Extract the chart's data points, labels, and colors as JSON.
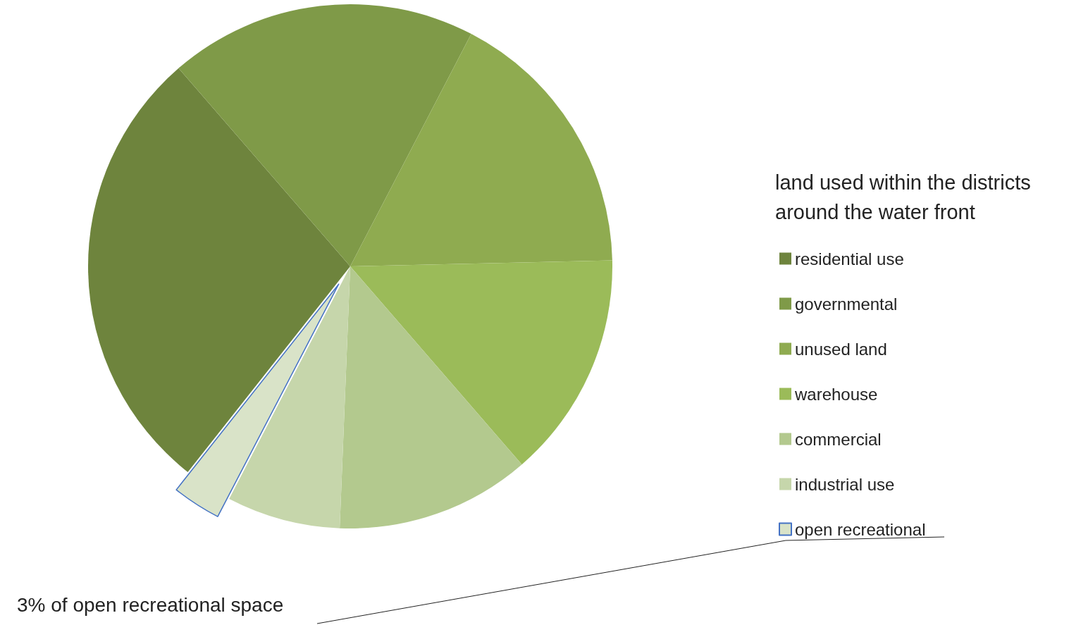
{
  "chart_data": {
    "type": "pie",
    "legend_title": "land used within the districts around the water front",
    "categories": [
      "residential use",
      "governmental",
      "unused land",
      "warehouse",
      "commercial",
      "industrial use",
      "open recreational"
    ],
    "values": [
      28,
      19,
      17,
      14,
      12,
      7,
      3
    ],
    "colors": [
      "#6e843d",
      "#7f9a48",
      "#8fab50",
      "#9bbb59",
      "#b3c98e",
      "#c6d6ab",
      "#d9e3c8"
    ],
    "annotations": [
      "3% of open recreational space"
    ],
    "legend": "right"
  }
}
